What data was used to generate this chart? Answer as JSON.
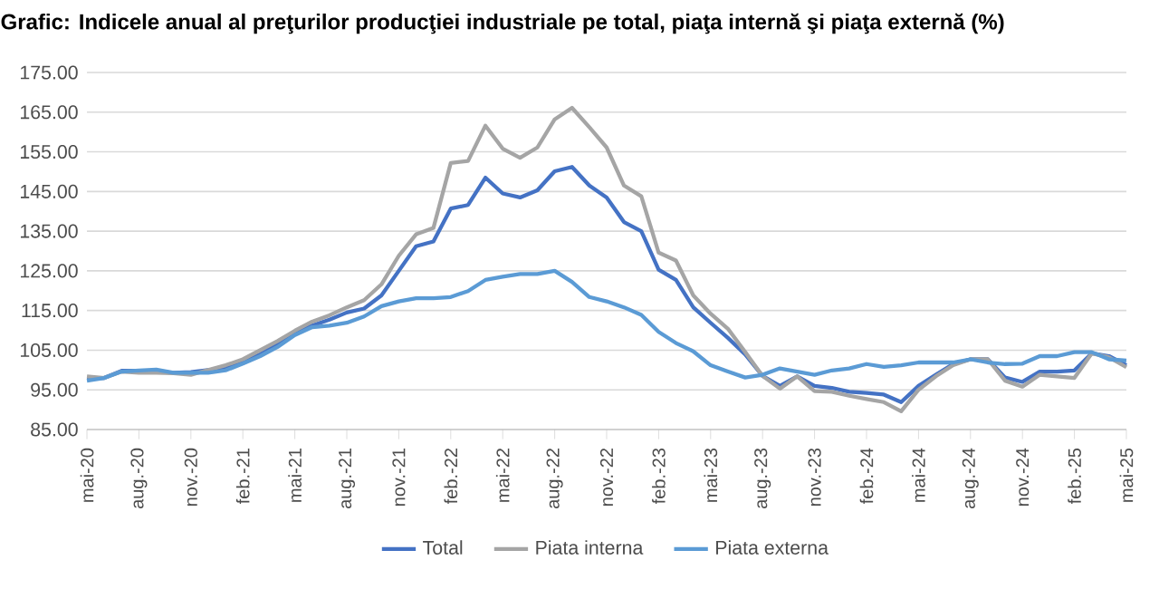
{
  "chart_data": {
    "type": "line",
    "title": "Grafic: Indicele anual al preţurilor producţiei industriale pe total, piaţa internă şi piaţa externă (%)",
    "categories": [
      "mai-20",
      null,
      null,
      "aug.-20",
      null,
      null,
      "nov.-20",
      null,
      null,
      "feb.-21",
      null,
      null,
      "mai-21",
      null,
      null,
      "aug.-21",
      null,
      null,
      "nov.-21",
      null,
      null,
      "feb.-22",
      null,
      null,
      "mai-22",
      null,
      null,
      "aug.-22",
      null,
      null,
      "nov.-22",
      null,
      null,
      "feb.-23",
      null,
      null,
      "mai-23",
      null,
      null,
      "aug.-23",
      null,
      null,
      "nov.-23",
      null,
      null,
      "feb.-24",
      null,
      null,
      "mai-24",
      null,
      null,
      "aug.-24",
      null,
      null,
      "nov.-24",
      null,
      null,
      "feb.-25",
      null,
      null,
      "mai-25"
    ],
    "series": [
      {
        "name": "Total",
        "color": "#4472c4",
        "values": [
          97.8,
          98,
          99.8,
          99.8,
          99.6,
          99.3,
          99.5,
          100,
          100.4,
          102,
          104,
          106.5,
          109.3,
          111.2,
          112.7,
          114.5,
          115.5,
          118.8,
          125,
          131.2,
          132.4,
          140.7,
          141.6,
          148.5,
          144.5,
          143.5,
          145.3,
          150.1,
          151.2,
          146.5,
          143.5,
          137.3,
          135,
          125.3,
          122.7,
          115.8,
          111.9,
          108.1,
          103.9,
          98.5,
          96,
          98.4,
          96,
          95.5,
          94.5,
          94.2,
          93.8,
          91.9,
          96,
          98.8,
          101.5,
          102.7,
          102.7,
          98.1,
          97,
          99.6,
          99.6,
          99.9,
          104.2,
          103.5,
          101.2
        ]
      },
      {
        "name": "Piata interna",
        "color": "#a5a5a5",
        "values": [
          98.4,
          98,
          99.6,
          99.3,
          99.3,
          99.2,
          98.8,
          100,
          101.2,
          102.7,
          105,
          107.3,
          109.9,
          112.2,
          113.8,
          115.8,
          117.6,
          121.6,
          128.8,
          134.2,
          135.8,
          152.2,
          152.7,
          161.6,
          155.8,
          153.5,
          156.1,
          163.2,
          166.1,
          161.2,
          156.1,
          146.5,
          143.8,
          129.6,
          127.6,
          118.8,
          114.2,
          110.4,
          104.5,
          98.5,
          95.3,
          98.4,
          94.7,
          94.5,
          93.5,
          92.7,
          91.9,
          89.6,
          95,
          98.4,
          101.2,
          102.7,
          102.7,
          97.3,
          95.8,
          98.8,
          98.4,
          98,
          104.2,
          103.2,
          100.7
        ]
      },
      {
        "name": "Piata externa",
        "color": "#5b9bd5",
        "values": [
          97.3,
          98,
          99.6,
          99.9,
          100.1,
          99.3,
          99.3,
          99.3,
          99.9,
          101.6,
          103.5,
          105.8,
          108.8,
          110.8,
          111.2,
          111.9,
          113.5,
          116.1,
          117.3,
          118.1,
          118.1,
          118.4,
          119.9,
          122.7,
          123.5,
          124.2,
          124.2,
          125,
          122.2,
          118.4,
          117.3,
          115.8,
          113.9,
          109.6,
          106.8,
          104.7,
          101.2,
          99.6,
          98.1,
          98.8,
          100.4,
          99.6,
          98.8,
          99.9,
          100.4,
          101.5,
          100.8,
          101.2,
          101.9,
          101.9,
          101.9,
          102.7,
          101.9,
          101.5,
          101.6,
          103.5,
          103.5,
          104.5,
          104.5,
          102.7,
          102.4
        ]
      }
    ],
    "ylim": [
      85,
      175
    ],
    "yticks": [
      {
        "value": 85,
        "label": "85.00"
      },
      {
        "value": 95,
        "label": "95.00"
      },
      {
        "value": 105,
        "label": "105.00"
      },
      {
        "value": 115,
        "label": "115.00"
      },
      {
        "value": 125,
        "label": "125.00"
      },
      {
        "value": 135,
        "label": "135.00"
      },
      {
        "value": 145,
        "label": "145.00"
      },
      {
        "value": 155,
        "label": "155.00"
      },
      {
        "value": 165,
        "label": "165.00"
      },
      {
        "value": 175,
        "label": "175.00"
      }
    ],
    "grid": "y",
    "legend": "bottom",
    "marker": "none",
    "line_style": "solid"
  }
}
